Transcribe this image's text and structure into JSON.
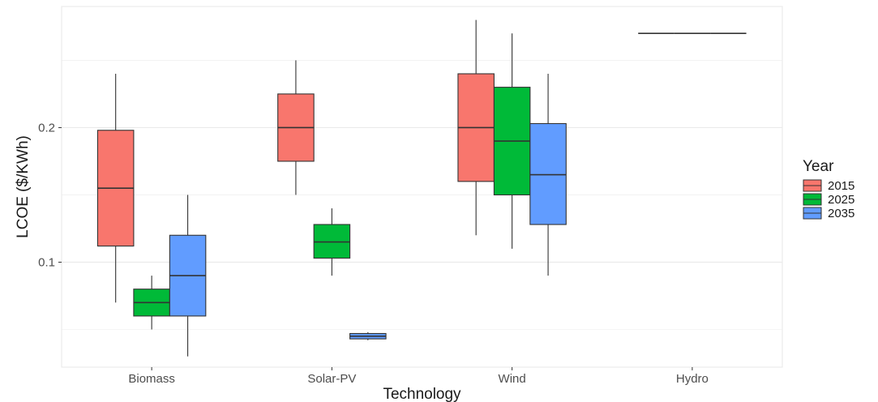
{
  "chart_data": {
    "type": "boxplot",
    "title": "",
    "xlabel": "Technology",
    "ylabel": "LCOE ($/KWh)",
    "categories": [
      "Biomass",
      "Solar-PV",
      "Wind",
      "Hydro"
    ],
    "yticks": [
      0.1,
      0.2
    ],
    "ylim": [
      0.022,
      0.29
    ],
    "grid": true,
    "legend": {
      "title": "Year",
      "position": "right"
    },
    "series": [
      {
        "name": "2015",
        "color": "#F8766D",
        "boxes": [
          {
            "category": "Biomass",
            "min": 0.07,
            "q1": 0.112,
            "median": 0.155,
            "q3": 0.198,
            "max": 0.24
          },
          {
            "category": "Solar-PV",
            "min": 0.15,
            "q1": 0.175,
            "median": 0.2,
            "q3": 0.225,
            "max": 0.25
          },
          {
            "category": "Wind",
            "min": 0.12,
            "q1": 0.16,
            "median": 0.2,
            "q3": 0.24,
            "max": 0.28
          },
          {
            "category": "Hydro",
            "min": 0.27,
            "q1": 0.27,
            "median": 0.27,
            "q3": 0.27,
            "max": 0.27
          }
        ]
      },
      {
        "name": "2025",
        "color": "#00BA38",
        "boxes": [
          {
            "category": "Biomass",
            "min": 0.05,
            "q1": 0.06,
            "median": 0.07,
            "q3": 0.08,
            "max": 0.09
          },
          {
            "category": "Solar-PV",
            "min": 0.09,
            "q1": 0.103,
            "median": 0.115,
            "q3": 0.128,
            "max": 0.14
          },
          {
            "category": "Wind",
            "min": 0.11,
            "q1": 0.15,
            "median": 0.19,
            "q3": 0.23,
            "max": 0.27
          },
          {
            "category": "Hydro",
            "min": 0.27,
            "q1": 0.27,
            "median": 0.27,
            "q3": 0.27,
            "max": 0.27
          }
        ]
      },
      {
        "name": "2035",
        "color": "#619CFF",
        "boxes": [
          {
            "category": "Biomass",
            "min": 0.03,
            "q1": 0.06,
            "median": 0.09,
            "q3": 0.12,
            "max": 0.15
          },
          {
            "category": "Solar-PV",
            "min": 0.042,
            "q1": 0.043,
            "median": 0.045,
            "q3": 0.047,
            "max": 0.048
          },
          {
            "category": "Wind",
            "min": 0.09,
            "q1": 0.128,
            "median": 0.165,
            "q3": 0.203,
            "max": 0.24
          },
          {
            "category": "Hydro",
            "min": 0.27,
            "q1": 0.27,
            "median": 0.27,
            "q3": 0.27,
            "max": 0.27
          }
        ]
      }
    ]
  }
}
